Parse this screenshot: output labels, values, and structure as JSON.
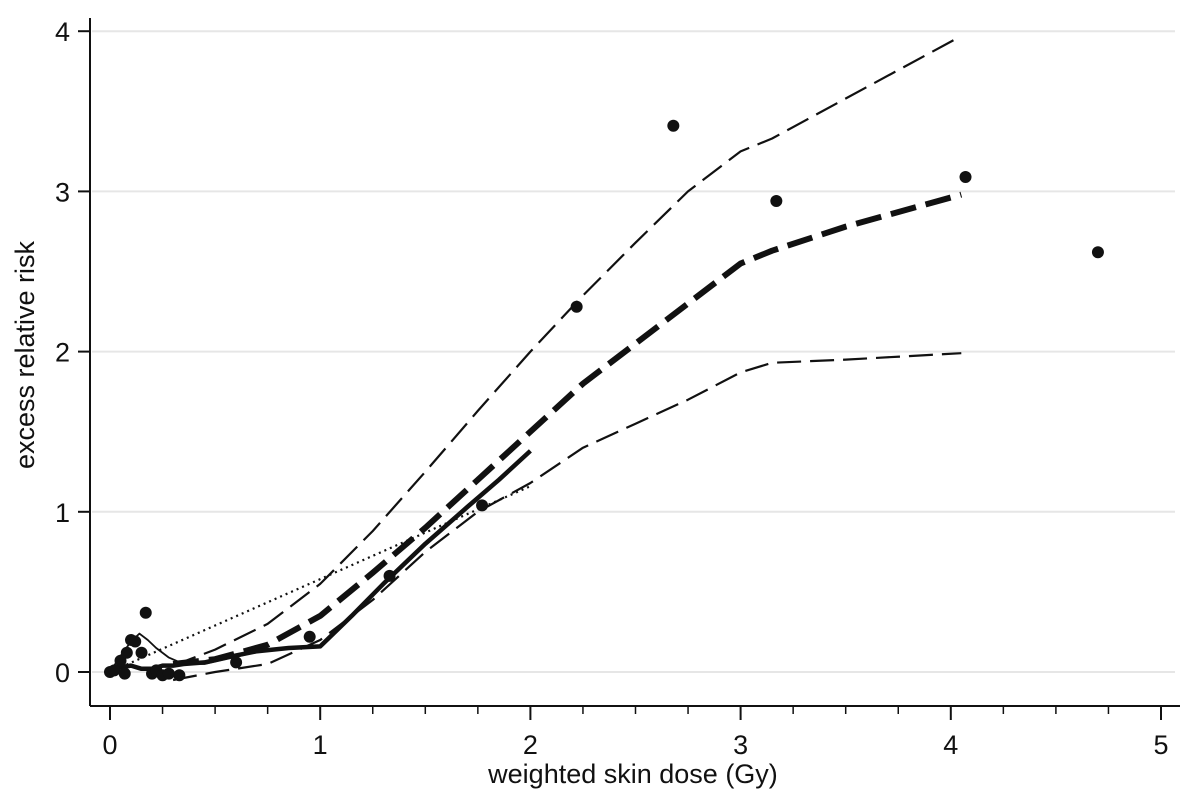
{
  "chart_data": {
    "type": "line",
    "title": "",
    "xlabel": "weighted skin dose (Gy)",
    "ylabel": "excess relative risk",
    "xlim": [
      0,
      5
    ],
    "ylim": [
      0,
      4
    ],
    "x_ticks": [
      "0",
      "1",
      "2",
      "3",
      "4",
      "5"
    ],
    "y_ticks": [
      "0",
      "1",
      "2",
      "3",
      "4"
    ],
    "grid": "horizontal",
    "legend": "none",
    "colors": {
      "ink": "#111111",
      "grid": "#e6e6e6",
      "background": "#ffffff"
    },
    "series": [
      {
        "style": "points",
        "points": [
          {
            "x": 0.0,
            "y": 0.0
          },
          {
            "x": 0.02,
            "y": 0.01
          },
          {
            "x": 0.05,
            "y": 0.07
          },
          {
            "x": 0.08,
            "y": 0.12
          },
          {
            "x": 0.1,
            "y": 0.2
          },
          {
            "x": 0.12,
            "y": 0.19
          },
          {
            "x": 0.15,
            "y": 0.12
          },
          {
            "x": 0.17,
            "y": 0.37
          },
          {
            "x": 0.2,
            "y": -0.01
          },
          {
            "x": 0.22,
            "y": 0.01
          },
          {
            "x": 0.25,
            "y": -0.02
          },
          {
            "x": 0.28,
            "y": -0.01
          },
          {
            "x": 0.33,
            "y": -0.02
          },
          {
            "x": 0.07,
            "y": -0.01
          },
          {
            "x": 0.6,
            "y": 0.06
          },
          {
            "x": 0.95,
            "y": 0.22
          },
          {
            "x": 1.33,
            "y": 0.6
          },
          {
            "x": 1.77,
            "y": 1.04
          },
          {
            "x": 2.22,
            "y": 2.28
          },
          {
            "x": 2.68,
            "y": 3.41
          },
          {
            "x": 3.17,
            "y": 2.94
          },
          {
            "x": 4.07,
            "y": 3.09
          },
          {
            "x": 4.7,
            "y": 2.62
          }
        ]
      },
      {
        "style": "thick-dashed",
        "points": [
          {
            "x": 0.3,
            "y": 0.05
          },
          {
            "x": 0.5,
            "y": 0.08
          },
          {
            "x": 0.75,
            "y": 0.17
          },
          {
            "x": 1.0,
            "y": 0.35
          },
          {
            "x": 1.25,
            "y": 0.62
          },
          {
            "x": 1.5,
            "y": 0.9
          },
          {
            "x": 1.75,
            "y": 1.2
          },
          {
            "x": 2.0,
            "y": 1.5
          },
          {
            "x": 2.25,
            "y": 1.8
          },
          {
            "x": 2.5,
            "y": 2.05
          },
          {
            "x": 2.75,
            "y": 2.3
          },
          {
            "x": 3.0,
            "y": 2.55
          },
          {
            "x": 3.15,
            "y": 2.63
          },
          {
            "x": 3.5,
            "y": 2.78
          },
          {
            "x": 4.05,
            "y": 2.98
          }
        ]
      },
      {
        "style": "thin-dashed",
        "points": [
          {
            "x": 0.3,
            "y": 0.04
          },
          {
            "x": 0.5,
            "y": 0.14
          },
          {
            "x": 0.75,
            "y": 0.3
          },
          {
            "x": 1.0,
            "y": 0.55
          },
          {
            "x": 1.25,
            "y": 0.88
          },
          {
            "x": 1.5,
            "y": 1.25
          },
          {
            "x": 1.75,
            "y": 1.63
          },
          {
            "x": 2.0,
            "y": 2.0
          },
          {
            "x": 2.25,
            "y": 2.35
          },
          {
            "x": 2.5,
            "y": 2.68
          },
          {
            "x": 2.75,
            "y": 3.0
          },
          {
            "x": 3.0,
            "y": 3.25
          },
          {
            "x": 3.15,
            "y": 3.33
          },
          {
            "x": 3.5,
            "y": 3.58
          },
          {
            "x": 4.05,
            "y": 3.97
          }
        ]
      },
      {
        "style": "thin-dashed",
        "points": [
          {
            "x": 0.3,
            "y": -0.05
          },
          {
            "x": 0.5,
            "y": 0.0
          },
          {
            "x": 0.75,
            "y": 0.05
          },
          {
            "x": 1.0,
            "y": 0.2
          },
          {
            "x": 1.25,
            "y": 0.45
          },
          {
            "x": 1.5,
            "y": 0.75
          },
          {
            "x": 1.75,
            "y": 1.0
          },
          {
            "x": 2.0,
            "y": 1.18
          },
          {
            "x": 2.25,
            "y": 1.4
          },
          {
            "x": 2.5,
            "y": 1.55
          },
          {
            "x": 2.75,
            "y": 1.7
          },
          {
            "x": 3.0,
            "y": 1.87
          },
          {
            "x": 3.15,
            "y": 1.93
          },
          {
            "x": 3.5,
            "y": 1.95
          },
          {
            "x": 4.05,
            "y": 1.99
          }
        ]
      },
      {
        "style": "solid",
        "points": [
          {
            "x": 0.0,
            "y": 0.0
          },
          {
            "x": 0.05,
            "y": 0.03
          },
          {
            "x": 0.1,
            "y": 0.04
          },
          {
            "x": 0.15,
            "y": 0.02
          },
          {
            "x": 0.2,
            "y": 0.02
          },
          {
            "x": 0.25,
            "y": 0.04
          },
          {
            "x": 0.3,
            "y": 0.04
          },
          {
            "x": 0.35,
            "y": 0.05
          },
          {
            "x": 0.45,
            "y": 0.06
          },
          {
            "x": 0.55,
            "y": 0.09
          },
          {
            "x": 0.7,
            "y": 0.13
          },
          {
            "x": 0.85,
            "y": 0.15
          },
          {
            "x": 1.0,
            "y": 0.16
          },
          {
            "x": 1.15,
            "y": 0.35
          },
          {
            "x": 1.3,
            "y": 0.55
          },
          {
            "x": 1.5,
            "y": 0.8
          },
          {
            "x": 1.7,
            "y": 1.03
          },
          {
            "x": 1.85,
            "y": 1.2
          },
          {
            "x": 2.0,
            "y": 1.38
          }
        ]
      },
      {
        "style": "thin-solid",
        "points": [
          {
            "x": 0.0,
            "y": 0.0
          },
          {
            "x": 0.05,
            "y": 0.1
          },
          {
            "x": 0.1,
            "y": 0.19
          },
          {
            "x": 0.14,
            "y": 0.24
          },
          {
            "x": 0.18,
            "y": 0.2
          },
          {
            "x": 0.22,
            "y": 0.15
          },
          {
            "x": 0.28,
            "y": 0.09
          },
          {
            "x": 0.35,
            "y": 0.05
          },
          {
            "x": 0.45,
            "y": 0.05
          },
          {
            "x": 0.55,
            "y": 0.08
          },
          {
            "x": 0.65,
            "y": 0.11
          }
        ]
      },
      {
        "style": "dotted",
        "points": [
          {
            "x": 0.0,
            "y": 0.0
          },
          {
            "x": 0.5,
            "y": 0.29
          },
          {
            "x": 1.0,
            "y": 0.58
          },
          {
            "x": 1.5,
            "y": 0.87
          },
          {
            "x": 2.0,
            "y": 1.16
          }
        ]
      }
    ]
  }
}
